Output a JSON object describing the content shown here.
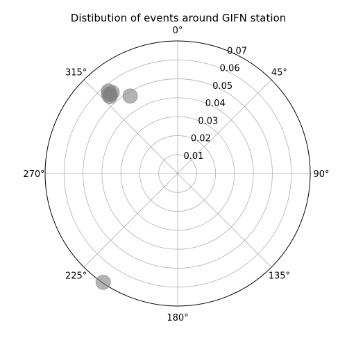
{
  "chart_data": {
    "type": "scatter",
    "projection": "polar",
    "title": "Distibution of events around GIFN station",
    "theta_zero_location": "N",
    "theta_direction": "clockwise",
    "theta_tick_labels": [
      "0°",
      "45°",
      "90°",
      "135°",
      "180°",
      "225°",
      "270°",
      "315°"
    ],
    "theta_ticks_deg": [
      0,
      45,
      90,
      135,
      180,
      225,
      270,
      315
    ],
    "r_ticks": [
      0.01,
      0.02,
      0.03,
      0.04,
      0.05,
      0.06,
      0.07
    ],
    "r_tick_labels": [
      "0.01",
      "0.02",
      "0.03",
      "0.04",
      "0.05",
      "0.06",
      "0.07"
    ],
    "rlim": [
      0,
      0.07
    ],
    "grid": true,
    "marker_color": "#808080",
    "marker_alpha": 0.6,
    "points": [
      {
        "theta_deg": 320.0,
        "r": 0.0568
      },
      {
        "theta_deg": 321.0,
        "r": 0.055
      },
      {
        "theta_deg": 319.5,
        "r": 0.0548
      },
      {
        "theta_deg": 319.0,
        "r": 0.0555
      },
      {
        "theta_deg": 318.6,
        "r": 0.0542
      },
      {
        "theta_deg": 328.5,
        "r": 0.048
      },
      {
        "theta_deg": 214.4,
        "r": 0.0696
      }
    ]
  }
}
